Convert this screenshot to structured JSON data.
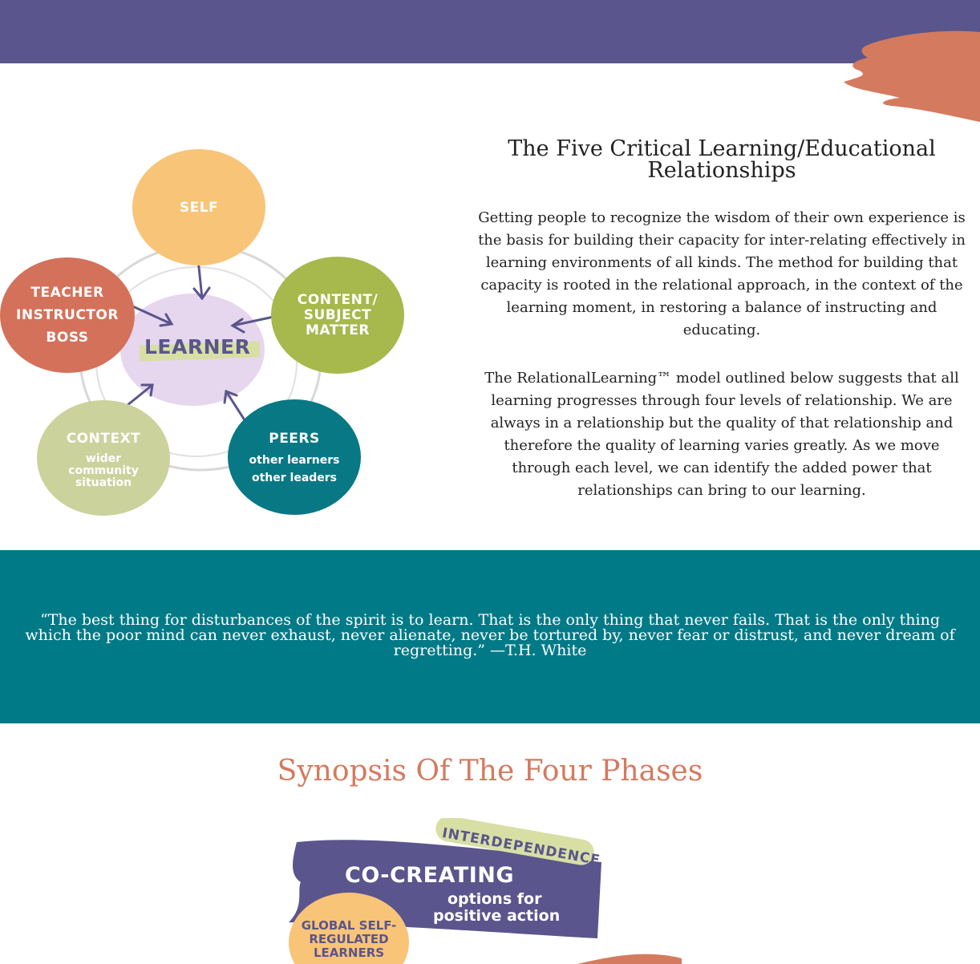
{
  "diagram": {
    "self": "SELF",
    "teacher": [
      "TEACHER",
      "INSTRUCTOR",
      "BOSS"
    ],
    "content": [
      "CONTENT/",
      "SUBJECT",
      "MATTER"
    ],
    "context_title": "CONTEXT",
    "context_sub": [
      "wider",
      "community",
      "situation"
    ],
    "peers_title": "PEERS",
    "peers_sub": [
      "other learners",
      "other leaders"
    ],
    "learner": "LEARNER"
  },
  "intro": {
    "heading": "The Five Critical Learning/Educational Relationships",
    "paragraph1": "Getting people to recognize the wisdom of their own experience is the basis for building their capacity for inter-relating effectively in learning environments of all kinds. The method for building that capacity is rooted in the relational approach, in the context of the learning moment, in restoring a balance of instructing and educating.",
    "paragraph2": "The RelationalLearning™ model outlined below suggests that all learning progresses through four levels of relationship. We are always in a relationship but the quality of that relationship and therefore the quality of learning varies greatly. As we move through each level, we can identify the added power that relationships can bring to our learning."
  },
  "quote": "“The best thing for disturbances of the spirit is to learn. That is the only thing that never fails. That is the only thing which the poor mind can never exhaust, never alienate, never be tortured by, never fear or distrust, and never dream of regretting.” —T.H. White",
  "synopsis_heading": "Synopsis Of The Four Phases",
  "phase_art": {
    "interdependence": "INTERDEPENDENCE",
    "co_creating": "CO-CREATING",
    "options": "options for",
    "positive_action": "positive action",
    "global": [
      "GLOBAL SELF-",
      "REGULATED",
      "LEARNERS"
    ]
  },
  "colors": {
    "purple": "#5a558c",
    "teal": "#017a87",
    "coral": "#d47a5e",
    "self": "#f8c478",
    "teacher": "#d4715a",
    "content": "#a7b84d",
    "context": "#cbd29b",
    "peers": "#087885"
  }
}
